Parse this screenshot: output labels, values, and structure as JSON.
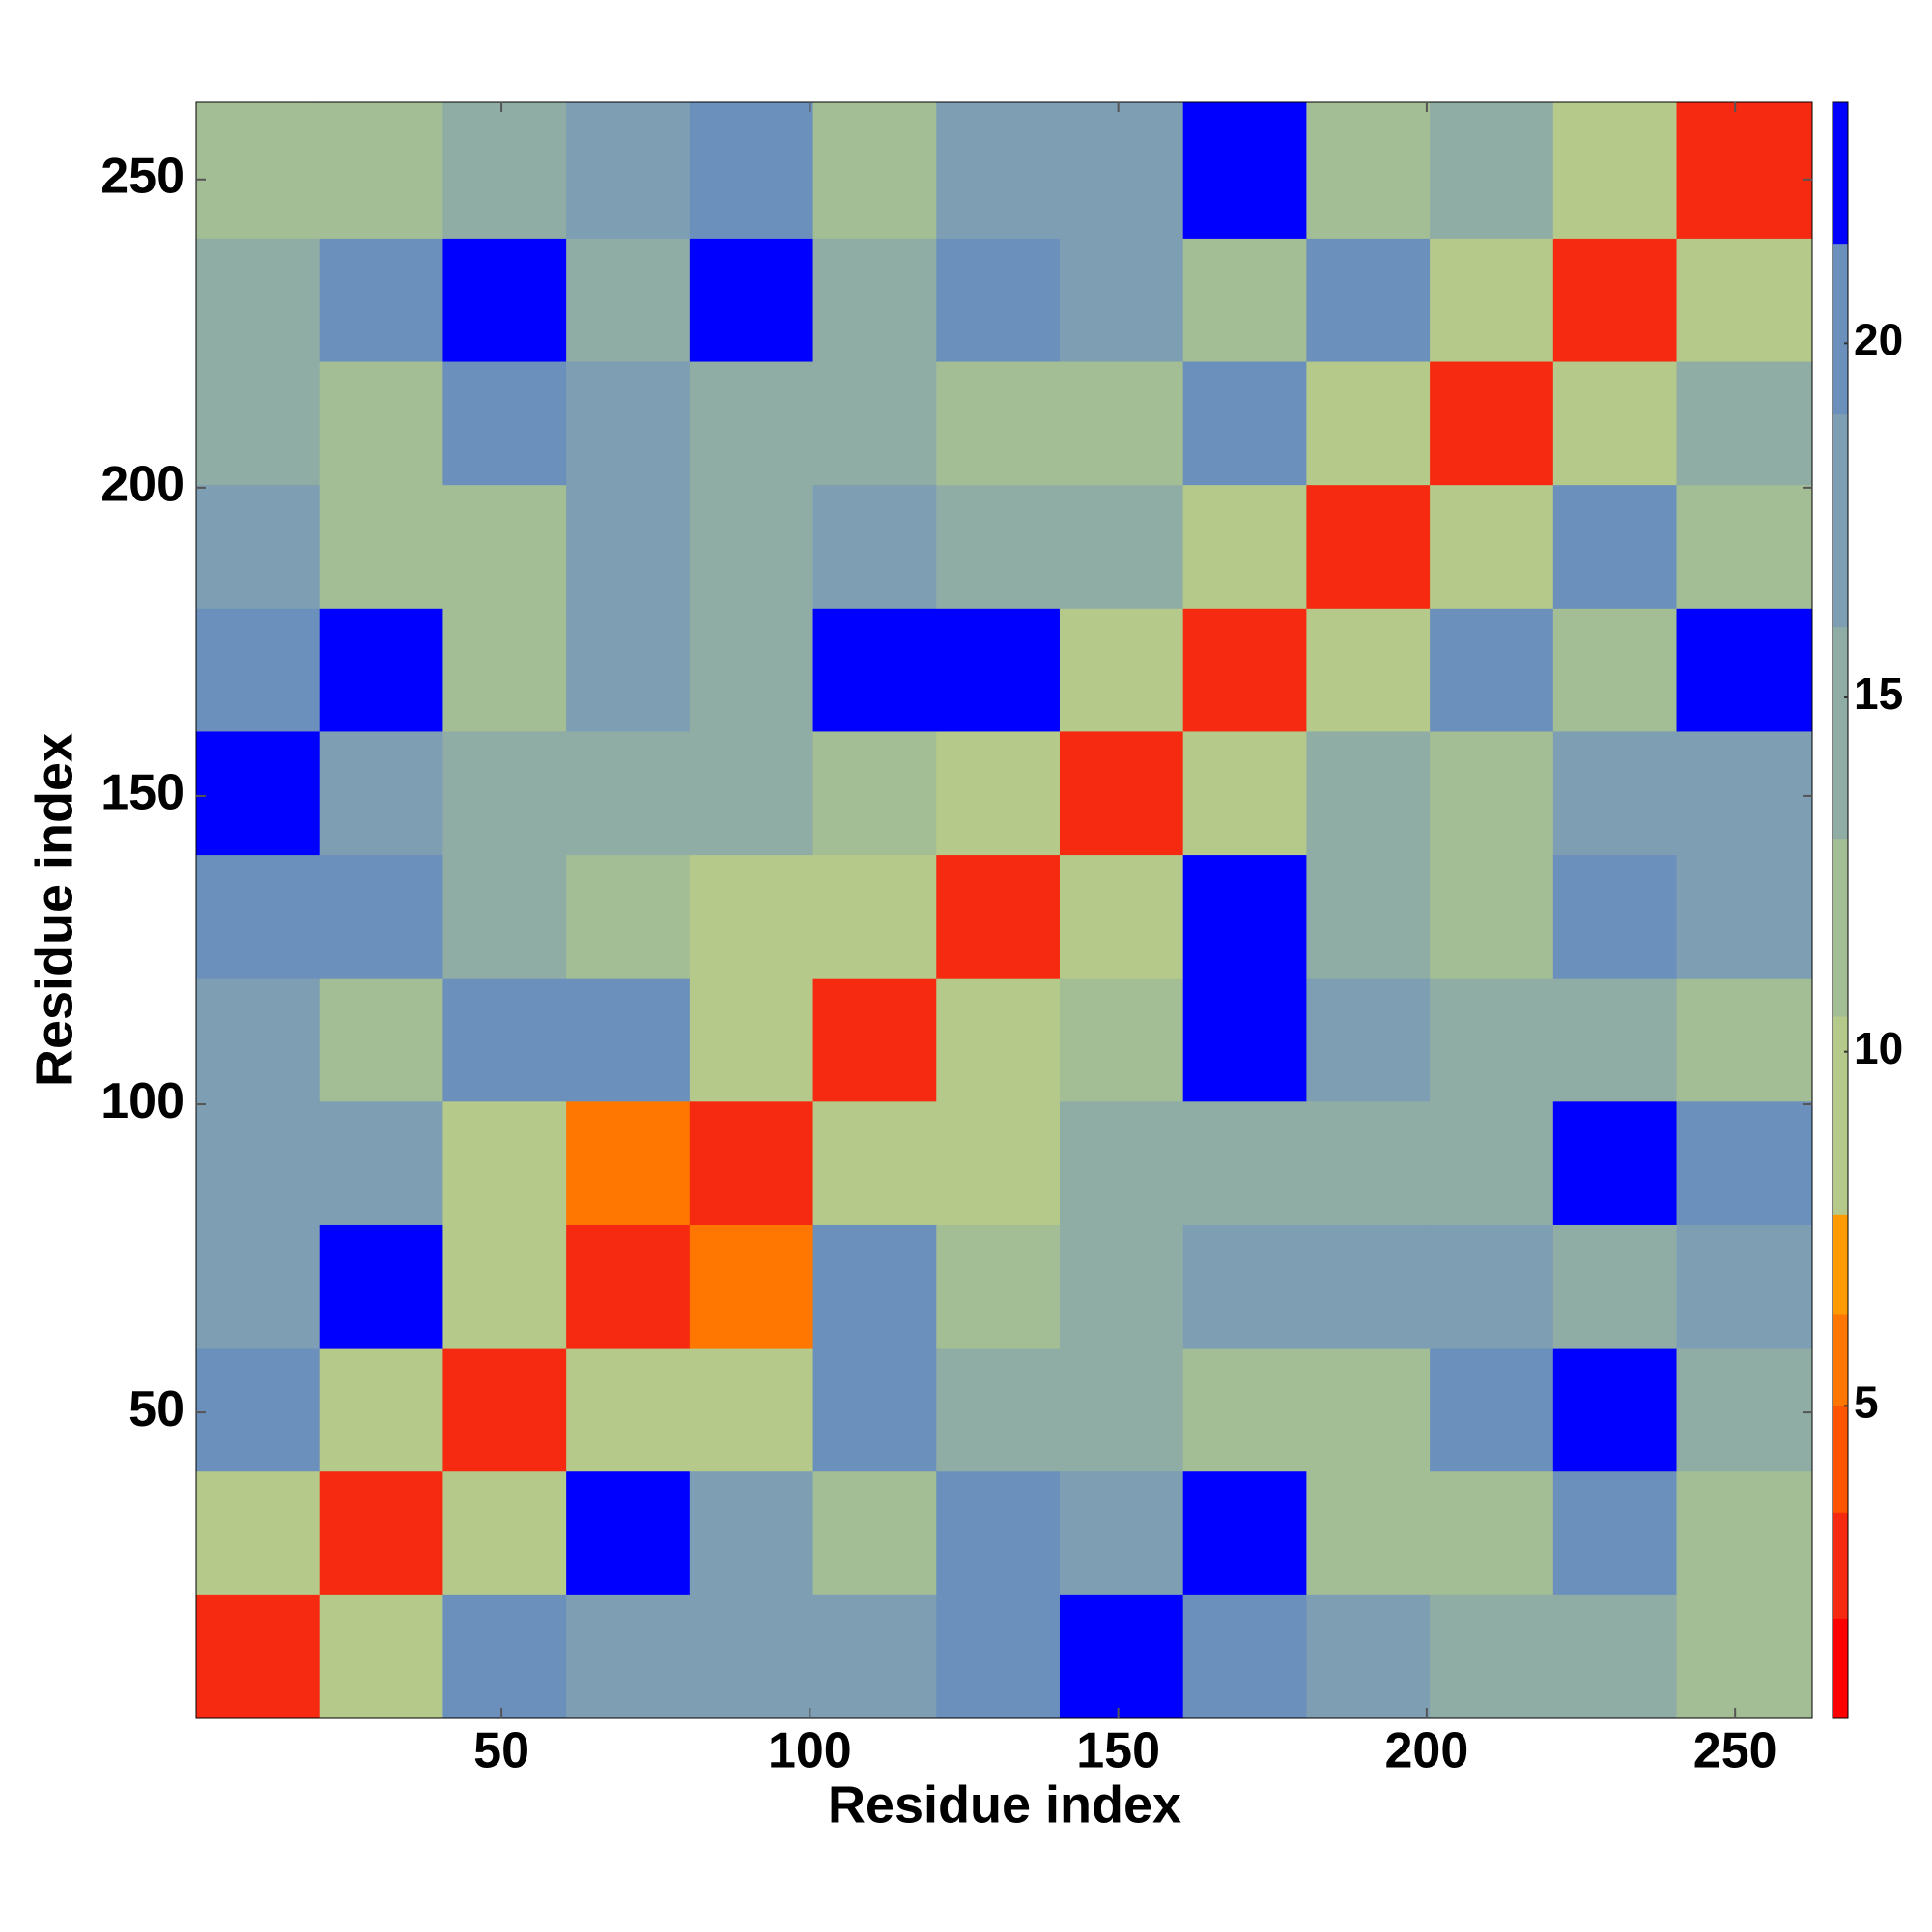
{
  "chart_data": {
    "type": "heatmap",
    "xlabel": "Residue index",
    "ylabel": "Residue index",
    "xlim": [
      0.5,
      262.5
    ],
    "ylim": [
      0.5,
      262.5
    ],
    "xticks": [
      50,
      100,
      150,
      200,
      250
    ],
    "yticks": [
      50,
      100,
      150,
      200,
      250
    ],
    "x_bins": [
      0.5,
      20.5,
      40.5,
      60.5,
      80.5,
      100.5,
      120.5,
      140.5,
      160.5,
      180.5,
      200.5,
      220.5,
      240.5,
      262.5
    ],
    "y_bins": [
      0.5,
      20.5,
      40.5,
      60.5,
      80.5,
      100.5,
      120.5,
      140.5,
      160.5,
      180.5,
      200.5,
      220.5,
      240.5,
      262.5
    ],
    "z": [
      [
        3,
        8,
        20,
        18,
        18,
        17,
        21,
        22,
        21,
        16,
        13,
        15,
        12
      ],
      [
        8,
        3,
        10,
        22,
        17,
        12,
        20,
        17,
        23,
        12,
        11,
        21,
        11
      ],
      [
        20,
        10,
        3,
        9,
        9,
        20,
        14,
        15,
        11,
        11,
        21,
        23,
        14
      ],
      [
        18,
        22,
        9,
        3,
        6,
        20,
        12,
        15,
        16,
        16,
        18,
        15,
        16
      ],
      [
        18,
        17,
        9,
        6,
        3,
        8,
        10,
        14,
        15,
        15,
        15,
        22,
        20
      ],
      [
        17,
        12,
        20,
        20,
        8,
        3,
        8,
        11,
        22,
        17,
        15,
        15,
        12
      ],
      [
        21,
        20,
        14,
        12,
        10,
        8,
        3,
        8,
        23,
        15,
        12,
        21,
        16
      ],
      [
        22,
        17,
        15,
        15,
        14,
        11,
        8,
        3,
        9,
        13,
        11,
        17,
        17
      ],
      [
        21,
        23,
        11,
        16,
        15,
        22,
        23,
        9,
        3,
        8,
        21,
        11,
        23
      ],
      [
        16,
        12,
        11,
        16,
        15,
        17,
        15,
        13,
        8,
        3,
        8,
        21,
        12
      ],
      [
        13,
        11,
        21,
        18,
        15,
        15,
        12,
        11,
        21,
        8,
        3,
        8,
        15
      ],
      [
        15,
        21,
        23,
        15,
        22,
        15,
        21,
        17,
        11,
        21,
        8,
        3,
        9
      ],
      [
        12,
        11,
        14,
        16,
        20,
        12,
        16,
        17,
        23,
        12,
        15,
        9,
        3
      ]
    ],
    "colorbar": {
      "zlim": [
        0.6,
        23.4
      ],
      "ticks": [
        5,
        10,
        15,
        20
      ],
      "levels": [
        0.6,
        2,
        3.5,
        5,
        6.3,
        7.7,
        10.5,
        13,
        16,
        19,
        21.4,
        23.4
      ],
      "colors": [
        "#ff0000",
        "#f52a10",
        "#ff5500",
        "#ff7700",
        "#ff9a00",
        "#b5c98a",
        "#a3bd95",
        "#90ada5",
        "#7d9eb3",
        "#6b90bb",
        "#0000ff"
      ]
    }
  }
}
